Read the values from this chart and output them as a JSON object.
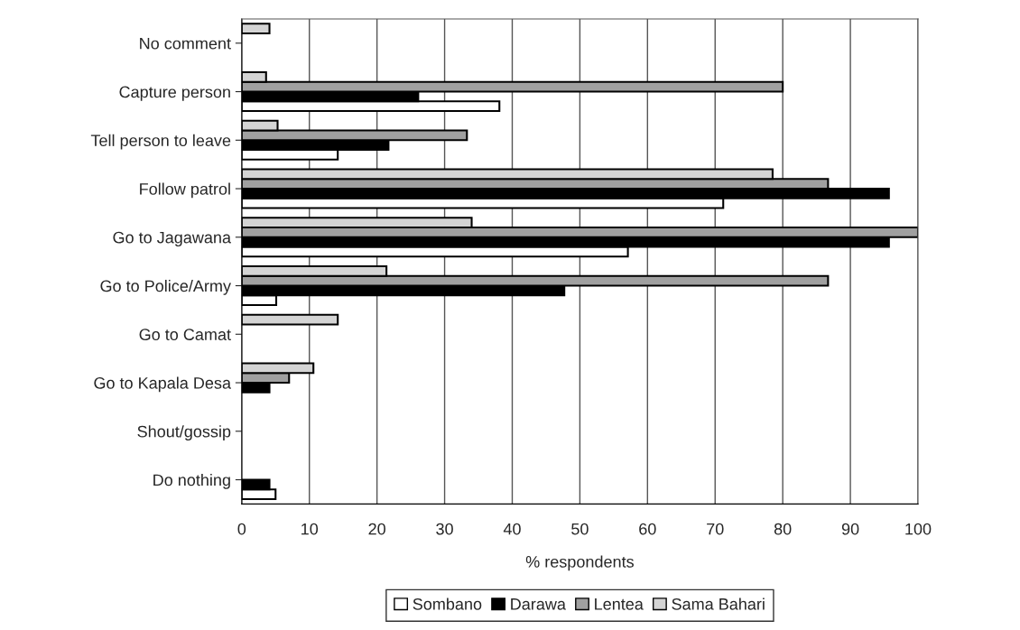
{
  "chart_data": {
    "type": "bar",
    "orientation": "horizontal",
    "xlabel": "% respondents",
    "categories": [
      "No comment",
      "Capture person",
      "Tell person to leave",
      "Follow patrol",
      "Go to Jagawana",
      "Go to Police/Army",
      "Go to Camat",
      "Go to Kapala Desa",
      "Shout/gossip",
      "Do nothing"
    ],
    "series": [
      {
        "name": "Sombano",
        "color": "#ffffff",
        "values": [
          null,
          38.1,
          14.2,
          71.2,
          57.1,
          5.1,
          null,
          null,
          null,
          5.0
        ]
      },
      {
        "name": "Darawa",
        "color": "#000000",
        "values": [
          null,
          26.1,
          21.7,
          95.7,
          95.7,
          47.7,
          null,
          4.1,
          null,
          4.1
        ]
      },
      {
        "name": "Lentea",
        "color": "#a0a0a0",
        "values": [
          null,
          80,
          33.3,
          86.7,
          100,
          86.7,
          null,
          7.0,
          null,
          null
        ]
      },
      {
        "name": "Sama Bahari",
        "color": "#d4d4d4",
        "values": [
          4.1,
          3.6,
          5.3,
          78.5,
          34.0,
          21.4,
          14.2,
          10.6,
          null,
          null
        ]
      }
    ],
    "xlim": [
      0,
      100
    ],
    "xticks": [
      0,
      10,
      20,
      30,
      40,
      50,
      60,
      70,
      80,
      90,
      100
    ],
    "grid": "x",
    "legend": "bottom"
  }
}
